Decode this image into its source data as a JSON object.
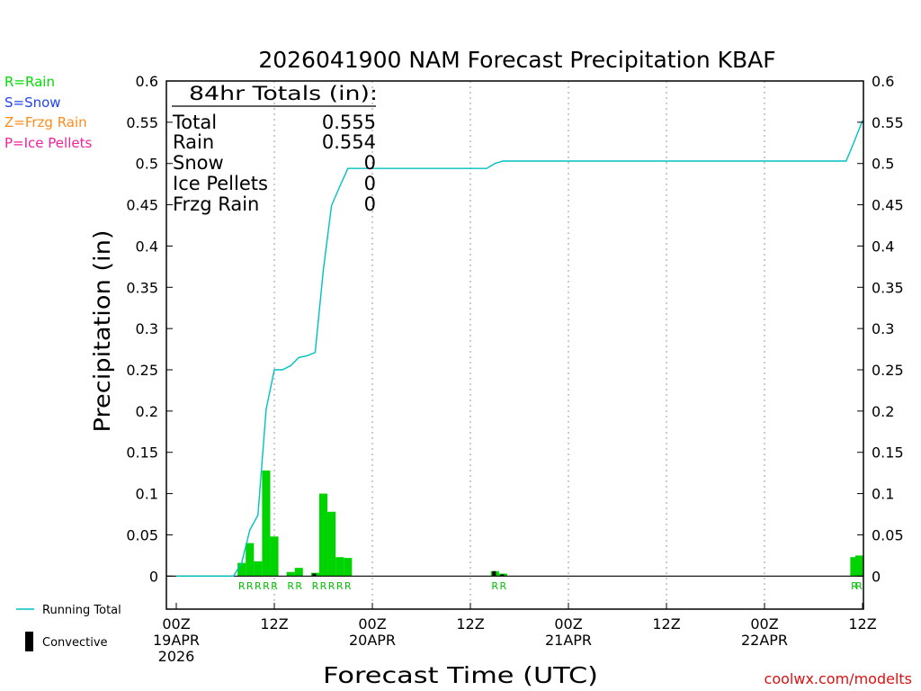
{
  "chart_data": {
    "type": "bar",
    "title": "2026041900 NAM Forecast Precipitation KBAF",
    "xlabel": "Forecast Time (UTC)",
    "ylabel": "Precipitation (in)",
    "ylim": [
      -0.04,
      0.6
    ],
    "yticks": [
      "0",
      "0.05",
      "0.1",
      "0.15",
      "0.2",
      "0.25",
      "0.3",
      "0.35",
      "0.4",
      "0.45",
      "0.5",
      "0.55",
      "0.6"
    ],
    "xlim_hours": [
      0,
      84
    ],
    "xticks": [
      {
        "hour": 0,
        "lines": [
          "00Z",
          "19APR",
          "2026"
        ]
      },
      {
        "hour": 12,
        "lines": [
          "12Z"
        ]
      },
      {
        "hour": 24,
        "lines": [
          "00Z",
          "20APR"
        ]
      },
      {
        "hour": 36,
        "lines": [
          "12Z"
        ]
      },
      {
        "hour": 48,
        "lines": [
          "00Z",
          "21APR"
        ]
      },
      {
        "hour": 60,
        "lines": [
          "12Z"
        ]
      },
      {
        "hour": 72,
        "lines": [
          "00Z",
          "22APR"
        ]
      },
      {
        "hour": 84,
        "lines": [
          "12Z"
        ]
      }
    ],
    "bar_series": {
      "name": "Rain",
      "color": "#00d400",
      "bars": [
        {
          "hour": 8,
          "value": 0.016
        },
        {
          "hour": 9,
          "value": 0.04
        },
        {
          "hour": 10,
          "value": 0.018
        },
        {
          "hour": 11,
          "value": 0.128
        },
        {
          "hour": 12,
          "value": 0.048
        },
        {
          "hour": 14,
          "value": 0.005
        },
        {
          "hour": 15,
          "value": 0.01
        },
        {
          "hour": 17,
          "value": 0.004
        },
        {
          "hour": 18,
          "value": 0.1
        },
        {
          "hour": 19,
          "value": 0.078
        },
        {
          "hour": 20,
          "value": 0.023
        },
        {
          "hour": 21,
          "value": 0.022
        },
        {
          "hour": 39,
          "value": 0.006
        },
        {
          "hour": 40,
          "value": 0.003
        },
        {
          "hour": 83,
          "value": 0.023
        },
        {
          "hour": 84,
          "value": 0.025
        }
      ]
    },
    "convective_series": {
      "name": "Convective",
      "color": "#000000",
      "bars": [
        {
          "hour": 17,
          "value": 0.003
        },
        {
          "hour": 39,
          "value": 0.006
        },
        {
          "hour": 40,
          "value": 0.002
        }
      ]
    },
    "line_series": {
      "name": "Running Total",
      "color": "#00c0c0",
      "points": [
        [
          0,
          0
        ],
        [
          1,
          0
        ],
        [
          2,
          0
        ],
        [
          3,
          0
        ],
        [
          4,
          0
        ],
        [
          5,
          0
        ],
        [
          6,
          0
        ],
        [
          7,
          0
        ],
        [
          8,
          0.016
        ],
        [
          9,
          0.056
        ],
        [
          10,
          0.074
        ],
        [
          11,
          0.202
        ],
        [
          12,
          0.25
        ],
        [
          13,
          0.25
        ],
        [
          14,
          0.255
        ],
        [
          15,
          0.265
        ],
        [
          16,
          0.267
        ],
        [
          17,
          0.271
        ],
        [
          18,
          0.371
        ],
        [
          19,
          0.449
        ],
        [
          20,
          0.472
        ],
        [
          21,
          0.494
        ],
        [
          22,
          0.494
        ],
        [
          38,
          0.494
        ],
        [
          39,
          0.5
        ],
        [
          40,
          0.503
        ],
        [
          82,
          0.503
        ],
        [
          83,
          0.527
        ],
        [
          84,
          0.552
        ]
      ]
    },
    "type_labels": [
      {
        "hour": 8,
        "text": "R"
      },
      {
        "hour": 9,
        "text": "R"
      },
      {
        "hour": 10,
        "text": "R"
      },
      {
        "hour": 11,
        "text": "R"
      },
      {
        "hour": 12,
        "text": "R"
      },
      {
        "hour": 14,
        "text": "R"
      },
      {
        "hour": 15,
        "text": "R"
      },
      {
        "hour": 17,
        "text": "R"
      },
      {
        "hour": 18,
        "text": "R"
      },
      {
        "hour": 19,
        "text": "R"
      },
      {
        "hour": 20,
        "text": "R"
      },
      {
        "hour": 21,
        "text": "R"
      },
      {
        "hour": 39,
        "text": "R"
      },
      {
        "hour": 40,
        "text": "R"
      },
      {
        "hour": 83,
        "text": "R"
      },
      {
        "hour": 84,
        "text": "R"
      }
    ],
    "totals": {
      "header": "84hr Totals (in):",
      "rows": [
        {
          "label": "Total",
          "value": "0.555"
        },
        {
          "label": "Rain",
          "value": "0.554"
        },
        {
          "label": "Snow",
          "value": "0"
        },
        {
          "label": "Ice Pellets",
          "value": "0"
        },
        {
          "label": "Frzg Rain",
          "value": "0"
        }
      ]
    },
    "type_legend": [
      {
        "text": "R=Rain",
        "color": "#00dd00"
      },
      {
        "text": "S=Snow",
        "color": "#2244ee"
      },
      {
        "text": "Z=Frzg Rain",
        "color": "#ff8c1a"
      },
      {
        "text": "P=Ice Pellets",
        "color": "#ee2299"
      }
    ],
    "bottom_legend": {
      "running_total": "Running Total",
      "convective": "Convective"
    },
    "credit": "coolwx.com/modelts",
    "credit_color": "#dd1111"
  }
}
